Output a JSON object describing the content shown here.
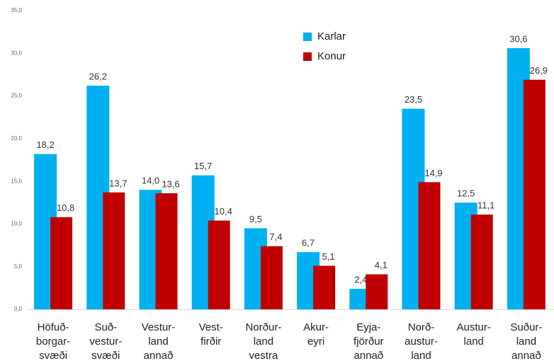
{
  "chart_data": {
    "type": "bar",
    "categories": [
      "Höfuð-\nborgar-\nsvæði",
      "Suð-\nvestur-\nsvæði",
      "Vestur-\nland\nannað",
      "Vest-\nfirðir",
      "Norður-\nland\nvestra",
      "Akur-\neyri",
      "Eyja-\nfjörður\nannað",
      "Norð-\naustur-\nland",
      "Austur-\nland",
      "Suður-\nland\nannað"
    ],
    "series": [
      {
        "name": "Karlar",
        "color": "#00b0f0",
        "values": [
          18.2,
          26.2,
          14.0,
          15.7,
          9.5,
          6.7,
          2.4,
          23.5,
          12.5,
          30.6
        ],
        "value_labels": [
          "18,2",
          "26,2",
          "14,0",
          "15,7",
          "9,5",
          "6,7",
          "2,4",
          "23,5",
          "12,5",
          "30,6"
        ]
      },
      {
        "name": "Konur",
        "color": "#c00000",
        "values": [
          10.8,
          13.7,
          13.6,
          10.4,
          7.4,
          5.1,
          4.1,
          14.9,
          11.1,
          26.9
        ],
        "value_labels": [
          "10,8",
          "13,7",
          "13,6",
          "10,4",
          "7,4",
          "5,1",
          "4,1",
          "14,9",
          "11,1",
          "26,9"
        ]
      }
    ],
    "ylim": [
      0,
      35
    ],
    "yticks": [
      {
        "value": 0,
        "label": "0,0"
      },
      {
        "value": 5,
        "label": "5,0"
      },
      {
        "value": 10,
        "label": "10,0"
      },
      {
        "value": 15,
        "label": "15,0"
      },
      {
        "value": 20,
        "label": "20,0"
      },
      {
        "value": 25,
        "label": "25,0"
      },
      {
        "value": 30,
        "label": "30,0"
      },
      {
        "value": 35,
        "label": "35,0"
      }
    ],
    "grid": false,
    "legend": "top"
  }
}
